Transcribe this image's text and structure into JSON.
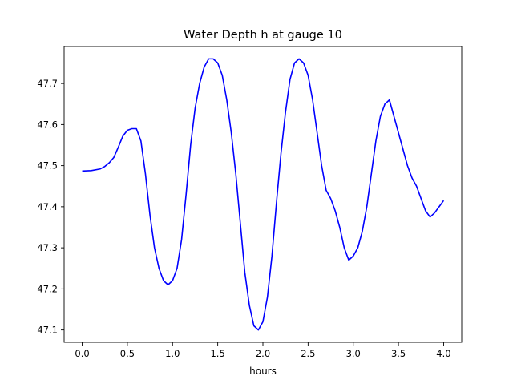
{
  "chart_data": {
    "type": "line",
    "title": "Water Depth h at gauge 10",
    "xlabel": "hours",
    "ylabel": "",
    "xlim": [
      -0.2,
      4.2
    ],
    "ylim": [
      47.07,
      47.79
    ],
    "xticks": [
      0.0,
      0.5,
      1.0,
      1.5,
      2.0,
      2.5,
      3.0,
      3.5,
      4.0
    ],
    "xtick_labels": [
      "0.0",
      "0.5",
      "1.0",
      "1.5",
      "2.0",
      "2.5",
      "3.0",
      "3.5",
      "4.0"
    ],
    "yticks": [
      47.1,
      47.2,
      47.3,
      47.4,
      47.5,
      47.6,
      47.7
    ],
    "ytick_labels": [
      "47.1",
      "47.2",
      "47.3",
      "47.4",
      "47.5",
      "47.6",
      "47.7"
    ],
    "grid": false,
    "series": [
      {
        "color": "#0000ff",
        "x": [
          0.0,
          0.1,
          0.2,
          0.25,
          0.3,
          0.35,
          0.4,
          0.45,
          0.5,
          0.55,
          0.6,
          0.65,
          0.7,
          0.75,
          0.8,
          0.85,
          0.9,
          0.95,
          1.0,
          1.05,
          1.1,
          1.15,
          1.2,
          1.25,
          1.3,
          1.35,
          1.4,
          1.45,
          1.5,
          1.55,
          1.6,
          1.65,
          1.7,
          1.75,
          1.8,
          1.85,
          1.9,
          1.95,
          2.0,
          2.05,
          2.1,
          2.15,
          2.2,
          2.25,
          2.3,
          2.35,
          2.4,
          2.45,
          2.5,
          2.55,
          2.6,
          2.65,
          2.7,
          2.75,
          2.8,
          2.85,
          2.9,
          2.95,
          3.0,
          3.05,
          3.1,
          3.15,
          3.2,
          3.25,
          3.3,
          3.35,
          3.4,
          3.45,
          3.5,
          3.55,
          3.6,
          3.65,
          3.7,
          3.75,
          3.8,
          3.85,
          3.9,
          3.95,
          4.0
        ],
        "values": [
          47.487,
          47.488,
          47.492,
          47.498,
          47.507,
          47.52,
          47.545,
          47.572,
          47.586,
          47.59,
          47.59,
          47.56,
          47.48,
          47.38,
          47.3,
          47.25,
          47.22,
          47.21,
          47.22,
          47.25,
          47.32,
          47.43,
          47.55,
          47.64,
          47.7,
          47.74,
          47.76,
          47.76,
          47.75,
          47.72,
          47.66,
          47.58,
          47.48,
          47.36,
          47.24,
          47.16,
          47.11,
          47.1,
          47.12,
          47.18,
          47.28,
          47.41,
          47.53,
          47.63,
          47.71,
          47.75,
          47.76,
          47.75,
          47.72,
          47.66,
          47.58,
          47.5,
          47.44,
          47.42,
          47.39,
          47.35,
          47.3,
          47.27,
          47.28,
          47.3,
          47.34,
          47.4,
          47.48,
          47.56,
          47.62,
          47.65,
          47.66,
          47.62,
          47.58,
          47.54,
          47.5,
          47.47,
          47.45,
          47.42,
          47.39,
          47.375,
          47.385,
          47.4,
          47.415
        ]
      }
    ]
  }
}
